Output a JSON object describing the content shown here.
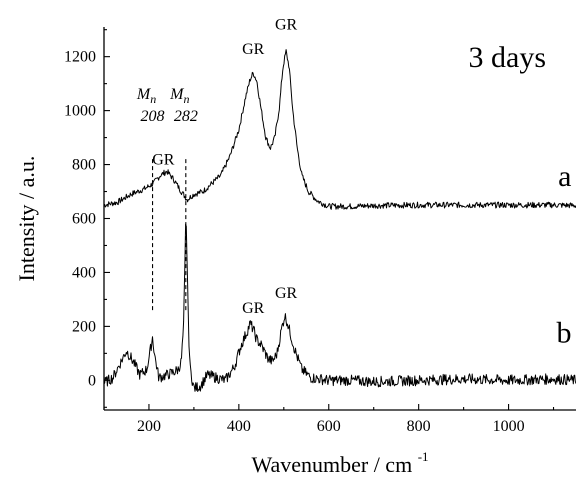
{
  "chart_data": {
    "type": "line",
    "title": "3 days",
    "xlabel": "Wavenumber / cm",
    "xlabel_sup": "-1",
    "ylabel": "Intensity / a.u.",
    "xlim": [
      100,
      1150
    ],
    "ylim": [
      -110,
      1310
    ],
    "x_ticks": [
      200,
      400,
      600,
      800,
      1000
    ],
    "y_ticks": [
      0,
      200,
      400,
      600,
      800,
      1000,
      1200
    ],
    "grid": false,
    "series": [
      {
        "name": "a",
        "peaks": [
          {
            "x": 240,
            "y": 775,
            "w": 28
          },
          {
            "x": 432,
            "y": 1130,
            "w": 24
          },
          {
            "x": 505,
            "y": 1210,
            "w": 18
          },
          {
            "x": 340,
            "y": 650,
            "w": 15
          },
          {
            "x": 415,
            "y": 900,
            "w": 25
          }
        ],
        "points": [
          [
            100,
            650
          ],
          [
            130,
            660
          ],
          [
            160,
            690
          ],
          [
            190,
            710
          ],
          [
            210,
            730
          ],
          [
            225,
            760
          ],
          [
            240,
            775
          ],
          [
            255,
            745
          ],
          [
            270,
            705
          ],
          [
            285,
            670
          ],
          [
            300,
            690
          ],
          [
            320,
            700
          ],
          [
            340,
            730
          ],
          [
            360,
            760
          ],
          [
            380,
            830
          ],
          [
            400,
            930
          ],
          [
            415,
            1050
          ],
          [
            425,
            1115
          ],
          [
            432,
            1140
          ],
          [
            440,
            1110
          ],
          [
            450,
            1000
          ],
          [
            460,
            900
          ],
          [
            470,
            860
          ],
          [
            480,
            900
          ],
          [
            490,
            1010
          ],
          [
            498,
            1160
          ],
          [
            505,
            1220
          ],
          [
            512,
            1160
          ],
          [
            520,
            1000
          ],
          [
            530,
            860
          ],
          [
            540,
            760
          ],
          [
            555,
            700
          ],
          [
            575,
            665
          ],
          [
            600,
            645
          ],
          [
            650,
            645
          ],
          [
            700,
            648
          ],
          [
            800,
            650
          ],
          [
            900,
            650
          ],
          [
            1000,
            650
          ],
          [
            1100,
            650
          ],
          [
            1150,
            648
          ]
        ]
      },
      {
        "name": "b",
        "points": [
          [
            100,
            -10
          ],
          [
            120,
            10
          ],
          [
            135,
            60
          ],
          [
            150,
            110
          ],
          [
            165,
            70
          ],
          [
            180,
            20
          ],
          [
            195,
            40
          ],
          [
            203,
            110
          ],
          [
            208,
            160
          ],
          [
            213,
            90
          ],
          [
            222,
            10
          ],
          [
            240,
            20
          ],
          [
            255,
            30
          ],
          [
            265,
            40
          ],
          [
            272,
            70
          ],
          [
            277,
            200
          ],
          [
            280,
            420
          ],
          [
            282,
            615
          ],
          [
            285,
            450
          ],
          [
            288,
            180
          ],
          [
            292,
            40
          ],
          [
            300,
            -30
          ],
          [
            315,
            -20
          ],
          [
            330,
            20
          ],
          [
            350,
            10
          ],
          [
            370,
            0
          ],
          [
            390,
            50
          ],
          [
            405,
            130
          ],
          [
            418,
            180
          ],
          [
            425,
            210
          ],
          [
            432,
            190
          ],
          [
            440,
            150
          ],
          [
            450,
            130
          ],
          [
            465,
            80
          ],
          [
            475,
            70
          ],
          [
            485,
            100
          ],
          [
            495,
            190
          ],
          [
            502,
            240
          ],
          [
            508,
            215
          ],
          [
            515,
            170
          ],
          [
            525,
            110
          ],
          [
            540,
            40
          ],
          [
            560,
            10
          ],
          [
            600,
            0
          ],
          [
            650,
            0
          ],
          [
            700,
            -5
          ],
          [
            800,
            0
          ],
          [
            900,
            5
          ],
          [
            1000,
            0
          ],
          [
            1100,
            5
          ],
          [
            1150,
            0
          ]
        ]
      }
    ],
    "markers": [
      {
        "x": 208,
        "label_symbol": "M",
        "label_sub": "n",
        "label_value": "208"
      },
      {
        "x": 282,
        "label_symbol": "M",
        "label_sub": "n",
        "label_value": "282"
      }
    ],
    "annotations": [
      {
        "text": "GR",
        "x": 232,
        "y": 800
      },
      {
        "text": "GR",
        "x": 432,
        "y": 1210
      },
      {
        "text": "GR",
        "x": 505,
        "y": 1300
      },
      {
        "text": "GR",
        "x": 432,
        "y": 250
      },
      {
        "text": "GR",
        "x": 505,
        "y": 305
      }
    ],
    "series_labels": [
      {
        "text": "a",
        "x": 1140,
        "y": 720
      },
      {
        "text": "b",
        "x": 1140,
        "y": 140
      }
    ]
  }
}
